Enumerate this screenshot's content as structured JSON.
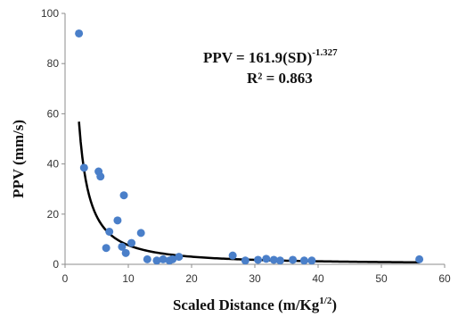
{
  "chart_data": {
    "type": "scatter",
    "xlabel_main": "Scaled Distance (m/Kg",
    "xlabel_sup": "1/2",
    "xlabel_end": ")",
    "ylabel": "PPV (mm/s)",
    "xlim": [
      0,
      60
    ],
    "ylim": [
      0,
      100
    ],
    "xticks": [
      0,
      10,
      20,
      30,
      40,
      50,
      60
    ],
    "yticks": [
      0,
      20,
      40,
      60,
      80,
      100
    ],
    "grid": false,
    "points": [
      {
        "x": 2.2,
        "y": 92
      },
      {
        "x": 3.0,
        "y": 38.5
      },
      {
        "x": 5.3,
        "y": 37
      },
      {
        "x": 5.6,
        "y": 35
      },
      {
        "x": 6.5,
        "y": 6.5
      },
      {
        "x": 7.0,
        "y": 13
      },
      {
        "x": 8.3,
        "y": 17.5
      },
      {
        "x": 9.3,
        "y": 27.5
      },
      {
        "x": 9.0,
        "y": 7
      },
      {
        "x": 9.6,
        "y": 4.5
      },
      {
        "x": 10.5,
        "y": 8.5
      },
      {
        "x": 12.0,
        "y": 12.5
      },
      {
        "x": 13.0,
        "y": 2
      },
      {
        "x": 14.5,
        "y": 1.5
      },
      {
        "x": 15.5,
        "y": 2
      },
      {
        "x": 16.5,
        "y": 1.5
      },
      {
        "x": 17.0,
        "y": 2
      },
      {
        "x": 18.0,
        "y": 3
      },
      {
        "x": 26.5,
        "y": 3.5
      },
      {
        "x": 28.5,
        "y": 1.5
      },
      {
        "x": 30.5,
        "y": 1.8
      },
      {
        "x": 31.8,
        "y": 2.2
      },
      {
        "x": 33.0,
        "y": 1.8
      },
      {
        "x": 34.0,
        "y": 1.5
      },
      {
        "x": 36.0,
        "y": 1.8
      },
      {
        "x": 37.8,
        "y": 1.5
      },
      {
        "x": 39.0,
        "y": 1.5
      },
      {
        "x": 56.0,
        "y": 2
      }
    ],
    "fit": {
      "coefficient": 161.9,
      "exponent": -1.327,
      "x_range": [
        2.2,
        56
      ]
    },
    "equation_main": "PPV = 161.9(SD)",
    "equation_exp": "-1.327",
    "r_squared": "R² = 0.863",
    "colors": {
      "points": "#4a7fc9",
      "fit_line": "#000000",
      "axes": "#8c8c8c"
    }
  }
}
